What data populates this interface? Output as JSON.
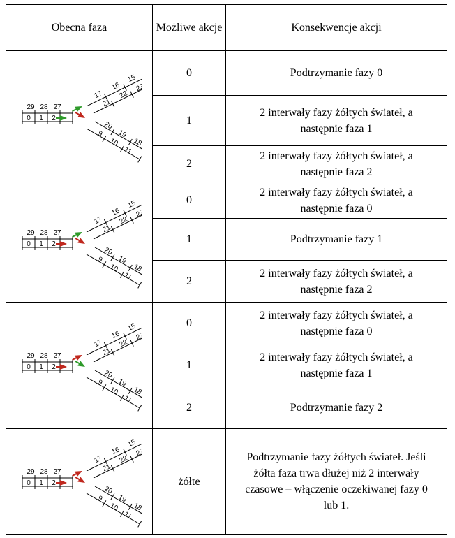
{
  "header": {
    "phase": "Obecna faza",
    "actions": "Możliwe akcje",
    "consequences": "Konsekwencje akcji"
  },
  "diagram_labels": {
    "left_top": [
      "29",
      "28",
      "27"
    ],
    "left_bottom": [
      "0",
      "1",
      "2"
    ],
    "upper_outer": [
      "17",
      "16",
      "15"
    ],
    "upper_inner": [
      "21",
      "22",
      "23"
    ],
    "lower_inner": [
      "20",
      "19",
      "18"
    ],
    "lower_outer": [
      "9",
      "10",
      "11"
    ]
  },
  "colors": {
    "green": "#2e9a2a",
    "red": "#c0281e"
  },
  "groups": [
    {
      "phase_lights": {
        "upper": "green",
        "lower_left": "green",
        "lower_right": "red"
      },
      "rows": [
        {
          "action": "0",
          "consequence": "Podtrzymanie fazy 0"
        },
        {
          "action": "1",
          "consequence": "2 interwały fazy żółtych świateł, a następnie faza 1"
        },
        {
          "action": "2",
          "consequence": "2 interwały fazy żółtych świateł, a następnie faza 2"
        }
      ]
    },
    {
      "phase_lights": {
        "upper": "green",
        "lower_left": "red",
        "lower_right": "red"
      },
      "rows": [
        {
          "action": "0",
          "consequence": "2 interwały fazy żółtych świateł, a następnie faza 0"
        },
        {
          "action": "1",
          "consequence": "Podtrzymanie fazy 1"
        },
        {
          "action": "2",
          "consequence": "2 interwały fazy żółtych świateł, a następnie faza 2"
        }
      ]
    },
    {
      "phase_lights": {
        "upper": "red",
        "lower_left": "red",
        "lower_right": "green"
      },
      "rows": [
        {
          "action": "0",
          "consequence": "2 interwały fazy żółtych świateł, a następnie faza 0"
        },
        {
          "action": "1",
          "consequence": "2 interwały fazy żółtych świateł, a następnie faza 1"
        },
        {
          "action": "2",
          "consequence": "Podtrzymanie fazy 2"
        }
      ]
    },
    {
      "phase_lights": {
        "upper": "red",
        "lower_left": "red",
        "lower_right": "red"
      },
      "rows": [
        {
          "action": "żółte",
          "consequence": "Podtrzymanie fazy żółtych świateł. Jeśli żółta faza trwa dłużej niż 2 interwały czasowe – włączenie oczekiwanej fazy 0 lub 1."
        }
      ]
    }
  ]
}
